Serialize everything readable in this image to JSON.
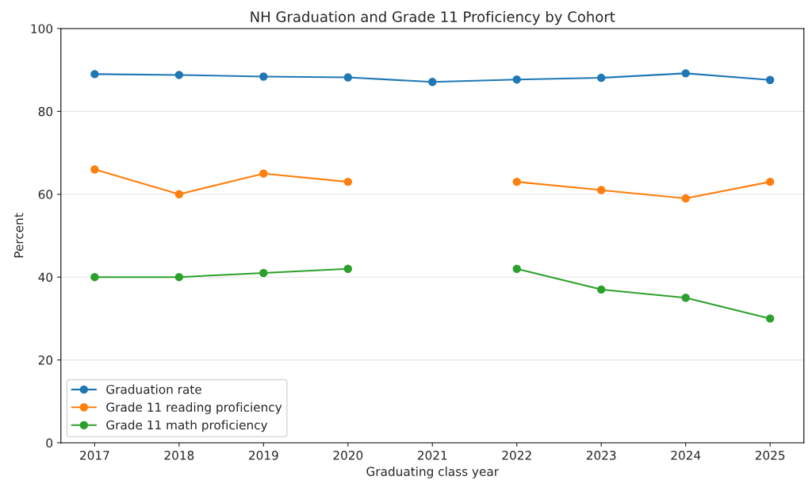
{
  "chart_data": {
    "type": "line",
    "title": "NH Graduation and Grade 11 Proficiency by Cohort",
    "xlabel": "Graduating class year",
    "ylabel": "Percent",
    "x": [
      2017,
      2018,
      2019,
      2020,
      2021,
      2022,
      2023,
      2024,
      2025
    ],
    "xlim": [
      2016.6,
      2025.4
    ],
    "xticks": [
      2017,
      2018,
      2019,
      2020,
      2021,
      2022,
      2023,
      2024,
      2025
    ],
    "ylim": [
      0,
      100
    ],
    "yticks": [
      0,
      20,
      40,
      60,
      80,
      100
    ],
    "grid": "y",
    "legend": "bottom left",
    "marker": "circle",
    "line_style": "solid",
    "series": [
      {
        "name": "Graduation rate",
        "color": "#1f77b4",
        "values": [
          89.0,
          88.8,
          88.4,
          88.2,
          87.1,
          87.7,
          88.1,
          89.2,
          87.6
        ]
      },
      {
        "name": "Grade 11 reading proficiency",
        "color": "#ff7f0e",
        "values": [
          66,
          60,
          65,
          63,
          null,
          63,
          61,
          59,
          63
        ]
      },
      {
        "name": "Grade 11 math proficiency",
        "color": "#2ca02c",
        "values": [
          40,
          40,
          41,
          42,
          null,
          42,
          37,
          35,
          30
        ]
      }
    ]
  }
}
